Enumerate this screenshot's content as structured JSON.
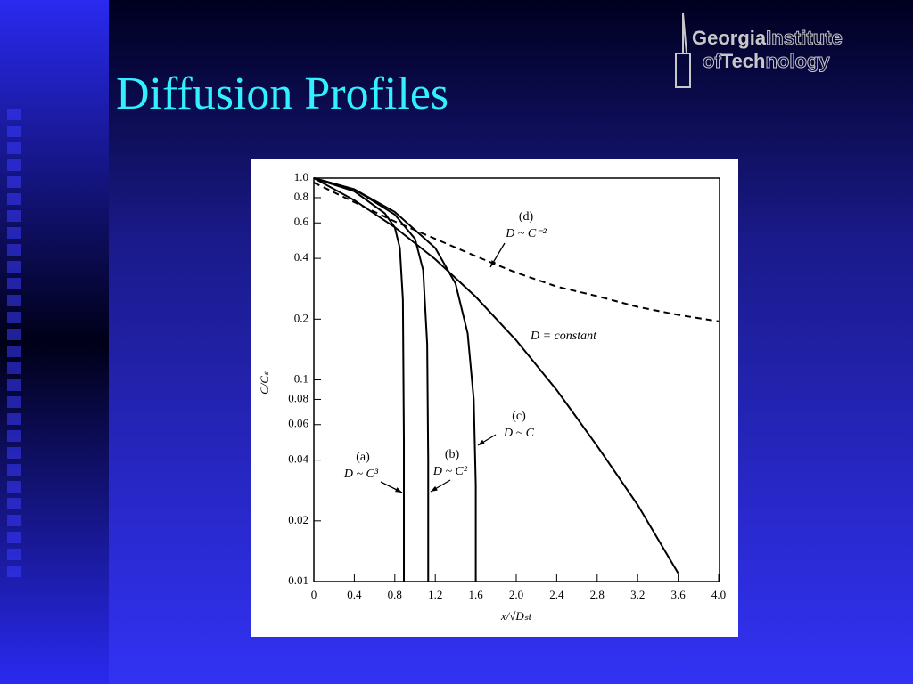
{
  "slide": {
    "title": "Diffusion Profiles",
    "logo": [
      "Georgia",
      "Institute",
      "of",
      "Tech",
      "nology"
    ]
  },
  "chart_data": {
    "type": "line",
    "x_label": "x/√Dₛt",
    "y_label": "C/Cₛ",
    "xlim": [
      0,
      4.0
    ],
    "ylim": [
      0.01,
      1.0
    ],
    "yscale": "log",
    "grid": false,
    "xticks": [
      0,
      0.4,
      0.8,
      1.2,
      1.6,
      {
        "value": 2,
        "label": "2.0"
      },
      2.4,
      2.8,
      3.2,
      3.6,
      {
        "value": 4,
        "label": "4.0"
      }
    ],
    "yticks": [
      {
        "value": 1,
        "label": "1.0"
      },
      0.8,
      0.6,
      0.4,
      0.2,
      0.1,
      0.08,
      0.06,
      0.04,
      0.02,
      0.01
    ],
    "series": [
      {
        "name": "D ~ C³",
        "label": "(a)",
        "color": "#000000",
        "dash": false,
        "x": [
          0,
          0.4,
          0.7,
          0.8,
          0.85,
          0.88,
          0.89,
          0.89
        ],
        "values": [
          1.0,
          0.86,
          0.67,
          0.57,
          0.45,
          0.25,
          0.05,
          0.01
        ]
      },
      {
        "name": "D ~ C²",
        "label": "(b)",
        "color": "#000000",
        "dash": false,
        "x": [
          0,
          0.4,
          0.8,
          1.0,
          1.08,
          1.12,
          1.13,
          1.13
        ],
        "values": [
          1.0,
          0.88,
          0.66,
          0.5,
          0.35,
          0.15,
          0.04,
          0.01
        ]
      },
      {
        "name": "D ~ C",
        "label": "(c)",
        "color": "#000000",
        "dash": false,
        "x": [
          0,
          0.4,
          0.8,
          1.2,
          1.4,
          1.52,
          1.58,
          1.6,
          1.6
        ],
        "values": [
          1.0,
          0.88,
          0.68,
          0.45,
          0.3,
          0.17,
          0.08,
          0.03,
          0.01
        ]
      },
      {
        "name": "D = constant",
        "color": "#000000",
        "dash": false,
        "x": [
          0,
          0.4,
          0.8,
          1.2,
          1.6,
          2.0,
          2.4,
          2.8,
          3.2,
          3.6
        ],
        "values": [
          1.0,
          0.777,
          0.571,
          0.396,
          0.258,
          0.157,
          0.089,
          0.047,
          0.024,
          0.011
        ]
      },
      {
        "name": "D ~ C⁻²",
        "label": "(d)",
        "color": "#000000",
        "dash": true,
        "x": [
          0,
          0.4,
          0.8,
          1.2,
          1.6,
          2.0,
          2.4,
          2.8,
          3.2,
          3.6,
          4.0
        ],
        "values": [
          0.95,
          0.76,
          0.61,
          0.5,
          0.41,
          0.34,
          0.29,
          0.26,
          0.23,
          0.21,
          0.195
        ]
      }
    ]
  }
}
